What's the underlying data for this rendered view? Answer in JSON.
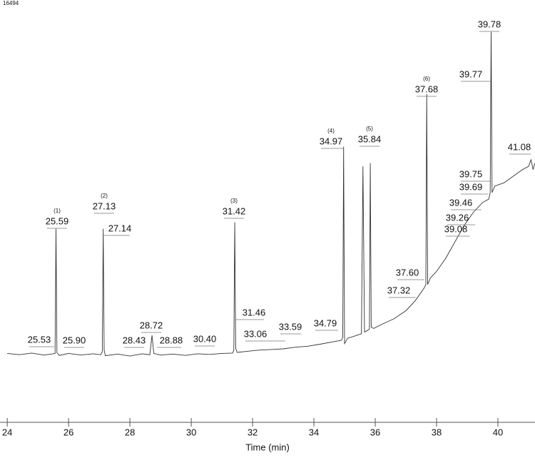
{
  "chart_data": {
    "type": "line",
    "corner_label": "16494",
    "xlabel": "Time (min)",
    "xlim": [
      23.95,
      41.21
    ],
    "ylim": [
      0,
      100
    ],
    "xticks": [
      24,
      26,
      28,
      30,
      32,
      34,
      36,
      38,
      40
    ],
    "series": [
      {
        "color": "#333333",
        "x": [
          24.0,
          24.4,
          24.8,
          25.2,
          25.5,
          25.56,
          25.59,
          25.62,
          25.7,
          26.0,
          26.4,
          26.8,
          27.05,
          27.1,
          27.13,
          27.16,
          27.2,
          27.6,
          28.0,
          28.4,
          28.65,
          28.72,
          28.78,
          29.0,
          29.4,
          29.8,
          30.2,
          30.6,
          31.0,
          31.35,
          31.39,
          31.42,
          31.45,
          31.5,
          31.8,
          32.2,
          32.6,
          33.0,
          33.4,
          33.8,
          34.2,
          34.6,
          34.9,
          34.94,
          34.97,
          35.0,
          35.1,
          35.4,
          35.55,
          35.6,
          35.65,
          35.75,
          35.81,
          35.84,
          35.87,
          35.95,
          36.2,
          36.6,
          37.0,
          37.3,
          37.6,
          37.65,
          37.68,
          37.71,
          37.8,
          38.0,
          38.3,
          38.6,
          38.9,
          39.2,
          39.5,
          39.7,
          39.75,
          39.78,
          39.81,
          39.9,
          40.2,
          40.5,
          40.8,
          41.0,
          41.08,
          41.15,
          41.2
        ],
        "values": [
          1.0,
          0.6,
          1.1,
          0.5,
          0.9,
          1.0,
          39,
          1.2,
          0.4,
          1.0,
          0.5,
          0.9,
          0.6,
          1.5,
          39,
          2.0,
          0.3,
          0.8,
          0.2,
          0.9,
          0.6,
          6.5,
          1.0,
          0.5,
          0.8,
          0.4,
          0.9,
          0.7,
          1.0,
          1.1,
          2.0,
          41,
          2.5,
          1.3,
          1.6,
          2.0,
          2.2,
          2.4,
          2.9,
          3.2,
          3.8,
          4.5,
          5.0,
          6,
          64,
          4.0,
          5.6,
          6.5,
          7.0,
          58,
          7.5,
          8.0,
          8.5,
          59,
          9,
          8.6,
          9.8,
          11.5,
          14,
          17,
          21,
          22,
          80,
          22,
          24,
          26,
          30,
          35,
          40,
          44,
          47,
          48,
          50,
          99,
          50,
          52,
          53,
          55,
          57,
          58,
          60,
          57,
          59
        ]
      }
    ],
    "annotations": [
      {
        "x": 25.53
      },
      {
        "x": 25.59,
        "tag": "(1)"
      },
      {
        "x": 25.9,
        "label": "25.90"
      },
      {
        "x": 27.13,
        "tag": "(2)"
      },
      {
        "x": 27.14
      },
      {
        "x": 28.43
      },
      {
        "x": 28.72
      },
      {
        "x": 28.88
      },
      {
        "x": 30.4,
        "label": "30.40"
      },
      {
        "x": 31.42,
        "tag": "(3)"
      },
      {
        "x": 31.46
      },
      {
        "x": 33.06
      },
      {
        "x": 33.59
      },
      {
        "x": 34.79
      },
      {
        "x": 34.97,
        "tag": "(4)"
      },
      {
        "x": 35.84,
        "tag": "(5)"
      },
      {
        "x": 37.32
      },
      {
        "x": 37.6,
        "label": "37.60"
      },
      {
        "x": 37.68,
        "tag": "(6)"
      },
      {
        "x": 39.08
      },
      {
        "x": 39.26
      },
      {
        "x": 39.46
      },
      {
        "x": 39.69
      },
      {
        "x": 39.75
      },
      {
        "x": 39.77
      },
      {
        "x": 39.78
      },
      {
        "x": 41.08
      }
    ]
  }
}
